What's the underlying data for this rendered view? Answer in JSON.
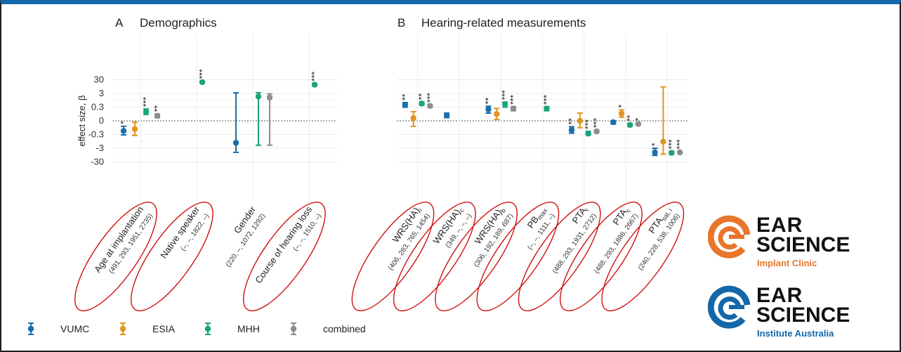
{
  "colors": {
    "VUMC": "#1b6ea8",
    "ESIA": "#e0951e",
    "MHH": "#1aa37a",
    "combined": "#8c8c8c",
    "ellipse": "#d01010",
    "frame_top": "#1467a9"
  },
  "chart_data": [
    {
      "type": "scatter",
      "panel_letter": "A",
      "title": "Demographics",
      "ylabel": "effect size, β",
      "yscale": "symlog",
      "yticks": [
        "30",
        "3",
        "0.3",
        "0",
        "-0.3",
        "-3",
        "-30"
      ],
      "categories": [
        {
          "label": "Age at implantation",
          "n": "(491, 293, 1951, 2735)"
        },
        {
          "label": "Native speaker",
          "n": "(–, –, 1822, –)"
        },
        {
          "label": "Gender",
          "n": "(220, –, 1072, 1292)"
        },
        {
          "label": "Course of hearing loss",
          "n": "(–, –, 1510, –)"
        }
      ],
      "points": [
        {
          "cat": 0,
          "series": "VUMC",
          "y": -0.22,
          "lo": -0.32,
          "hi": -0.12,
          "sig": "*"
        },
        {
          "cat": 0,
          "series": "ESIA",
          "y": -0.18,
          "lo": -0.35,
          "hi": -0.03,
          "sig": ""
        },
        {
          "cat": 0,
          "series": "MHH",
          "y": 0.2,
          "lo": 0.14,
          "hi": 0.26,
          "sig": "***"
        },
        {
          "cat": 0,
          "series": "combined",
          "y": 0.11,
          "lo": 0.07,
          "hi": 0.15,
          "sig": "**"
        },
        {
          "cat": 1,
          "series": "MHH",
          "y": 20,
          "lo": 17,
          "hi": 24,
          "sig": "***"
        },
        {
          "cat": 2,
          "series": "VUMC",
          "y": -1.2,
          "lo": -6,
          "hi": 3.3,
          "sig": ""
        },
        {
          "cat": 2,
          "series": "MHH",
          "y": 1.8,
          "lo": -1.8,
          "hi": 3.4,
          "sig": ""
        },
        {
          "cat": 2,
          "series": "combined",
          "y": 1.5,
          "lo": -1.8,
          "hi": 2.8,
          "sig": ""
        },
        {
          "cat": 3,
          "series": "MHH",
          "y": 13,
          "lo": 11,
          "hi": 16,
          "sig": "***"
        }
      ]
    },
    {
      "type": "scatter",
      "panel_letter": "B",
      "title": "Hearing-related measurements",
      "yscale": "symlog",
      "categories": [
        {
          "label": "WRS(HA)",
          "sub": "i",
          "n": "(406, 283, 765, 1454)"
        },
        {
          "label": "WRS(HA)",
          "sub": "c",
          "n": "(349, –, –, –)"
        },
        {
          "label": "WRS(HA)",
          "sub": "b",
          "n": "(306, 192, 189, 687)"
        },
        {
          "label": "PB",
          "sub": "max",
          "n": "(–, –, 1111, –)"
        },
        {
          "label": "PTA",
          "sub": "i",
          "n": "(488, 293, 1931, 2712)"
        },
        {
          "label": "PTA",
          "sub": "c",
          "n": "(488, 293, 1886, 2667)"
        },
        {
          "label": "PTA",
          "sub": "sat, i",
          "n": "(240, 228, 538, 1006)"
        }
      ],
      "points": [
        {
          "cat": 0,
          "series": "VUMC",
          "y": 0.45,
          "lo": 0.3,
          "hi": 0.65,
          "sig": "**"
        },
        {
          "cat": 0,
          "series": "ESIA",
          "y": 0.06,
          "lo": -0.12,
          "hi": 0.2,
          "sig": ""
        },
        {
          "cat": 0,
          "series": "MHH",
          "y": 0.55,
          "lo": 0.42,
          "hi": 0.7,
          "sig": "**"
        },
        {
          "cat": 0,
          "series": "combined",
          "y": 0.37,
          "lo": 0.3,
          "hi": 0.45,
          "sig": "***"
        },
        {
          "cat": 1,
          "series": "VUMC",
          "y": 0.12,
          "lo": 0.07,
          "hi": 0.17,
          "sig": ""
        },
        {
          "cat": 2,
          "series": "VUMC",
          "y": 0.25,
          "lo": 0.17,
          "hi": 0.35,
          "sig": "**"
        },
        {
          "cat": 2,
          "series": "ESIA",
          "y": 0.15,
          "lo": 0.03,
          "hi": 0.27,
          "sig": ""
        },
        {
          "cat": 2,
          "series": "MHH",
          "y": 0.5,
          "lo": 0.3,
          "hi": 0.7,
          "sig": "***"
        },
        {
          "cat": 2,
          "series": "combined",
          "y": 0.27,
          "lo": 0.22,
          "hi": 0.32,
          "sig": "***"
        },
        {
          "cat": 3,
          "series": "MHH",
          "y": 0.27,
          "lo": 0.22,
          "hi": 0.32,
          "sig": "***"
        },
        {
          "cat": 4,
          "series": "VUMC",
          "y": -0.2,
          "lo": -0.27,
          "hi": -0.13,
          "sig": "**"
        },
        {
          "cat": 4,
          "series": "ESIA",
          "y": 0.0,
          "lo": -0.15,
          "hi": 0.17,
          "sig": ""
        },
        {
          "cat": 4,
          "series": "MHH",
          "y": -0.28,
          "lo": -0.33,
          "hi": -0.23,
          "sig": "***"
        },
        {
          "cat": 4,
          "series": "combined",
          "y": -0.23,
          "lo": -0.26,
          "hi": -0.2,
          "sig": "***"
        },
        {
          "cat": 5,
          "series": "VUMC",
          "y": -0.03,
          "lo": -0.07,
          "hi": 0.0,
          "sig": ""
        },
        {
          "cat": 5,
          "series": "ESIA",
          "y": 0.16,
          "lo": 0.08,
          "hi": 0.24,
          "sig": "*"
        },
        {
          "cat": 5,
          "series": "MHH",
          "y": -0.09,
          "lo": -0.12,
          "hi": -0.06,
          "sig": "**"
        },
        {
          "cat": 5,
          "series": "combined",
          "y": -0.07,
          "lo": -0.09,
          "hi": -0.05,
          "sig": "*"
        },
        {
          "cat": 6,
          "series": "VUMC",
          "y": -6,
          "lo": -10,
          "hi": -3,
          "sig": "*"
        },
        {
          "cat": 6,
          "series": "ESIA",
          "y": -1.0,
          "lo": -8,
          "hi": 9,
          "sig": ""
        },
        {
          "cat": 6,
          "series": "MHH",
          "y": -6.5,
          "lo": -8,
          "hi": -5,
          "sig": "***"
        },
        {
          "cat": 6,
          "series": "combined",
          "y": -6,
          "lo": -7,
          "hi": -5,
          "sig": "***"
        }
      ]
    }
  ],
  "legend": [
    {
      "series": "VUMC",
      "label": "VUMC"
    },
    {
      "series": "ESIA",
      "label": "ESIA"
    },
    {
      "series": "MHH",
      "label": "MHH"
    },
    {
      "series": "combined",
      "label": "combined"
    }
  ],
  "logos": {
    "implant": {
      "line1": "EAR",
      "line2": "SCIENCE",
      "sub": "Implant Clinic",
      "color": "#e8762b"
    },
    "institute": {
      "line1": "EAR",
      "line2": "SCIENCE",
      "sub": "Institute Australia",
      "color": "#1467a9"
    }
  }
}
